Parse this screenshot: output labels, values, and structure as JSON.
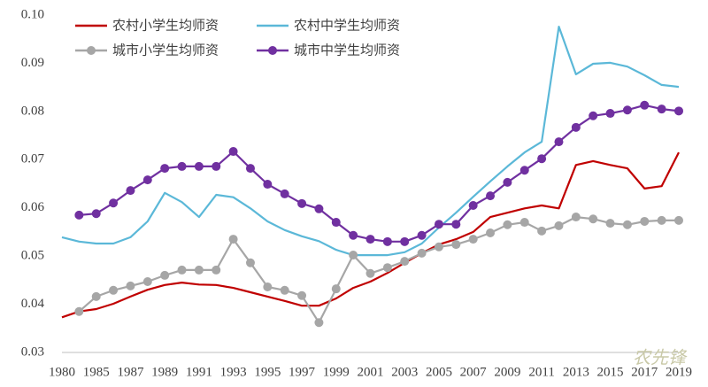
{
  "chart_data": {
    "type": "line",
    "categories": [
      "1980",
      null,
      "1985",
      null,
      "1987",
      null,
      "1989",
      null,
      "1991",
      null,
      "1993",
      null,
      "1995",
      null,
      "1997",
      null,
      "1999",
      null,
      "2001",
      null,
      "2003",
      null,
      "2005",
      null,
      "2007",
      null,
      "2009",
      null,
      "2011",
      null,
      "2013",
      null,
      "2015",
      null,
      "2017",
      null,
      "2019"
    ],
    "ylim": [
      0.03,
      0.1
    ],
    "yticks": [
      0.03,
      0.04,
      0.05,
      0.06,
      0.07,
      0.08,
      0.09,
      {
        "value": 0.1,
        "label": "0.10"
      }
    ],
    "grid": false,
    "legend": "top-left",
    "watermark": "农先锋",
    "series": [
      {
        "name": "农村小学生均师资",
        "color": "#c00000",
        "markers": false,
        "values": [
          0.0373,
          0.0385,
          0.039,
          0.0401,
          0.0416,
          0.043,
          0.044,
          0.0445,
          0.0441,
          0.044,
          0.0434,
          0.0425,
          0.0416,
          0.0407,
          0.0397,
          0.0397,
          0.0412,
          0.0434,
          0.0447,
          0.0465,
          0.0486,
          0.0506,
          0.0524,
          0.0535,
          0.055,
          0.0581,
          0.059,
          0.0599,
          0.0605,
          0.0599,
          0.0689,
          0.0697,
          0.0689,
          0.0682,
          0.064,
          0.0645,
          0.0715
        ]
      },
      {
        "name": "农村中学生均师资",
        "color": "#5bb8d8",
        "markers": false,
        "values": [
          0.0539,
          0.053,
          0.0526,
          0.0526,
          0.0539,
          0.0572,
          0.0631,
          0.0612,
          0.0581,
          0.0627,
          0.0622,
          0.0599,
          0.0572,
          0.0554,
          0.0541,
          0.0531,
          0.0513,
          0.0502,
          0.0502,
          0.0502,
          0.0508,
          0.0526,
          0.0559,
          0.059,
          0.0623,
          0.0655,
          0.0686,
          0.0715,
          0.0737,
          0.0976,
          0.0877,
          0.0899,
          0.0901,
          0.0893,
          0.0875,
          0.0855,
          0.0851
        ]
      },
      {
        "name": "城市小学生均师资",
        "color": "#a6a6a6",
        "markers": true,
        "values": [
          null,
          0.0385,
          0.0416,
          0.0429,
          0.0438,
          0.0447,
          0.046,
          0.0471,
          0.0471,
          0.0471,
          0.0535,
          0.0486,
          0.0436,
          0.0429,
          0.0418,
          0.0362,
          0.0432,
          0.0502,
          0.0464,
          0.0476,
          0.0489,
          0.0506,
          0.0519,
          0.0524,
          0.0535,
          0.0548,
          0.0565,
          0.057,
          0.0552,
          0.0563,
          0.0581,
          0.0577,
          0.0568,
          0.0565,
          0.0572,
          0.0574,
          0.0574
        ]
      },
      {
        "name": "城市中学生均师资",
        "color": "#7030a0",
        "markers": true,
        "values": [
          null,
          0.0585,
          0.0588,
          0.061,
          0.0636,
          0.0658,
          0.0682,
          0.0686,
          0.0686,
          0.0686,
          0.0717,
          0.0682,
          0.0649,
          0.0629,
          0.0609,
          0.0598,
          0.057,
          0.0543,
          0.0535,
          0.053,
          0.053,
          0.0543,
          0.0566,
          0.0566,
          0.0605,
          0.0625,
          0.0653,
          0.0678,
          0.0702,
          0.0737,
          0.0767,
          0.0791,
          0.0796,
          0.0803,
          0.0813,
          0.0805,
          0.0801
        ]
      }
    ]
  }
}
